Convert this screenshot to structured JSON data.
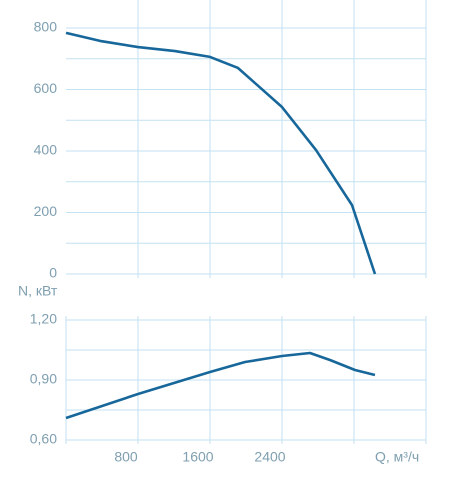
{
  "chart_data": [
    {
      "type": "line",
      "x": [
        0,
        378,
        800,
        1211,
        1600,
        1911,
        2400,
        2778,
        3178,
        3433
      ],
      "series": [
        {
          "color": "#17679a",
          "values": [
            784,
            758,
            738,
            725,
            706,
            670,
            543,
            403,
            224,
            0
          ]
        }
      ],
      "xlim": [
        0,
        4000
      ],
      "xgrid": [
        800,
        1600,
        2400,
        3200,
        4000
      ],
      "ylim": [
        0,
        800
      ],
      "yticks": [
        0,
        200,
        400,
        600,
        800
      ],
      "ygrid": [
        0,
        100,
        200,
        300,
        400,
        500,
        600,
        700,
        800
      ],
      "grid_color": "#c3e2f2"
    },
    {
      "type": "line",
      "y_label": "N, кВт",
      "x_label": "Q, м³/ч",
      "x": [
        0,
        800,
        1600,
        1989,
        2400,
        2711,
        2933,
        3211,
        3433
      ],
      "series": [
        {
          "color": "#17679a",
          "values": [
            0.71,
            0.83,
            0.94,
            0.99,
            1.02,
            1.035,
            1.0,
            0.95,
            0.925
          ]
        }
      ],
      "xlim": [
        0,
        4000
      ],
      "xticks": [
        800,
        1600,
        2400
      ],
      "xgrid": [
        0,
        800,
        1600,
        2400,
        3200,
        4000
      ],
      "ylim": [
        0.6,
        1.2
      ],
      "yticks": [
        {
          "value": 0.6,
          "label": "0,60"
        },
        {
          "value": 0.9,
          "label": "0,90"
        },
        {
          "value": 1.2,
          "label": "1,20"
        }
      ],
      "ygrid": [
        0.6,
        0.75,
        0.9,
        1.05,
        1.2
      ],
      "grid_color": "#c3e2f2"
    }
  ]
}
